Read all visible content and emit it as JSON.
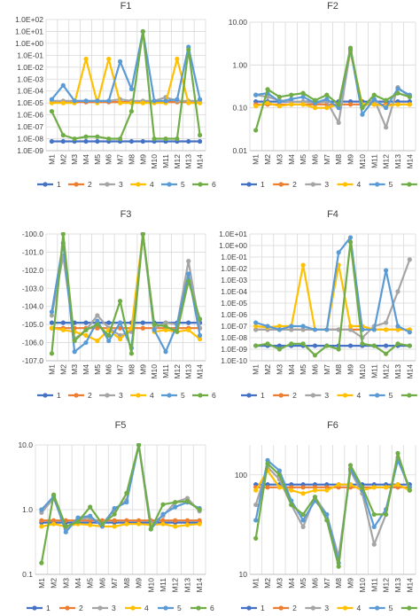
{
  "colors": {
    "1": "#4472C4",
    "2": "#ED7D31",
    "3": "#A5A5A5",
    "4": "#FFC000",
    "5": "#5B9BD5",
    "6": "#70AD47"
  },
  "chart_data": [
    {
      "type": "line",
      "title": "F1",
      "scale": "log",
      "categories": [
        "M1",
        "M2",
        "M3",
        "M4",
        "M5",
        "M6",
        "M7",
        "M8",
        "M9",
        "M10",
        "M11",
        "M12",
        "M13",
        "M14"
      ],
      "ylim": [
        1e-09,
        100
      ],
      "ytick_labels": [
        "1.0E-09",
        "1.0E-08",
        "1.0E-07",
        "1.0E-06",
        "1.0E-05",
        "1.0E-04",
        "1.0E-03",
        "1.0E-02",
        "1.0E-01",
        "1.0E+00",
        "1.0E+01",
        "1.0E+02"
      ],
      "legend": "bottom",
      "series": [
        {
          "name": "1",
          "values": [
            6e-09,
            6e-09,
            6e-09,
            6e-09,
            6e-09,
            6e-09,
            6e-09,
            6e-09,
            6e-09,
            6e-09,
            6e-09,
            6e-09,
            6e-09,
            6e-09
          ]
        },
        {
          "name": "2",
          "values": [
            1.2e-05,
            1.2e-05,
            1.2e-05,
            1.2e-05,
            1.2e-05,
            1.2e-05,
            1.2e-05,
            1.2e-05,
            1.2e-05,
            1.2e-05,
            1.2e-05,
            1.2e-05,
            1.2e-05,
            1.2e-05
          ]
        },
        {
          "name": "3",
          "values": [
            1.5e-05,
            1.5e-05,
            1.5e-05,
            1.5e-05,
            1.5e-05,
            1.5e-05,
            2e-05,
            1.5e-05,
            1.5e-05,
            1.5e-05,
            3e-05,
            1.5e-05,
            1.5e-05,
            1.5e-05
          ]
        },
        {
          "name": "4",
          "values": [
            1e-05,
            1e-05,
            1e-05,
            0.05,
            1e-05,
            0.05,
            1e-05,
            1e-05,
            1e-05,
            1e-05,
            1e-05,
            0.05,
            1e-05,
            1e-05
          ]
        },
        {
          "name": "5",
          "values": [
            2e-05,
            0.0003,
            1.5e-05,
            1.5e-05,
            1.5e-05,
            1.5e-05,
            0.03,
            0.00015,
            10,
            1.5e-05,
            1.5e-05,
            2e-05,
            0.5,
            2e-05
          ]
        },
        {
          "name": "6",
          "values": [
            2e-06,
            2e-08,
            1e-08,
            1.5e-08,
            1.5e-08,
            1e-08,
            1e-08,
            2e-06,
            10,
            1e-08,
            1e-08,
            1e-08,
            0.3,
            2e-08
          ]
        }
      ]
    },
    {
      "type": "line",
      "title": "F2",
      "scale": "log",
      "categories": [
        "M1",
        "M2",
        "M3",
        "M4",
        "M5",
        "M6",
        "M7",
        "M8",
        "M9",
        "M10",
        "M11",
        "M12",
        "M13",
        "M14"
      ],
      "ylim": [
        0.01,
        10
      ],
      "ytick_labels": [
        "0.01",
        "0.10",
        "1.00",
        "10.00"
      ],
      "legend": "bottom",
      "series": [
        {
          "name": "1",
          "values": [
            0.14,
            0.14,
            0.14,
            0.14,
            0.14,
            0.14,
            0.14,
            0.14,
            0.14,
            0.14,
            0.14,
            0.14,
            0.14,
            0.14
          ]
        },
        {
          "name": "2",
          "values": [
            0.12,
            0.12,
            0.12,
            0.12,
            0.12,
            0.12,
            0.12,
            0.12,
            0.12,
            0.12,
            0.12,
            0.12,
            0.12,
            0.12
          ]
        },
        {
          "name": "3",
          "values": [
            0.2,
            0.18,
            0.15,
            0.14,
            0.14,
            0.13,
            0.14,
            0.045,
            2.2,
            0.1,
            0.16,
            0.035,
            0.3,
            0.18
          ]
        },
        {
          "name": "4",
          "values": [
            0.11,
            0.13,
            0.11,
            0.12,
            0.12,
            0.1,
            0.1,
            0.12,
            2.0,
            0.12,
            0.12,
            0.11,
            0.12,
            0.12
          ]
        },
        {
          "name": "5",
          "values": [
            0.2,
            0.22,
            0.14,
            0.16,
            0.18,
            0.13,
            0.16,
            0.1,
            2.3,
            0.07,
            0.16,
            0.1,
            0.28,
            0.2
          ]
        },
        {
          "name": "6",
          "values": [
            0.03,
            0.27,
            0.18,
            0.2,
            0.22,
            0.15,
            0.2,
            0.12,
            2.5,
            0.1,
            0.2,
            0.15,
            0.22,
            0.18
          ]
        }
      ]
    },
    {
      "type": "line",
      "title": "F3",
      "scale": "linear",
      "categories": [
        "M1",
        "M2",
        "M3",
        "M4",
        "M5",
        "M6",
        "M7",
        "M8",
        "M9",
        "M10",
        "M11",
        "M12",
        "M13",
        "M14"
      ],
      "ylim": [
        -107,
        -100
      ],
      "ytick_labels": [
        "-107.0",
        "-106.0",
        "-105.0",
        "-104.0",
        "-103.0",
        "-102.0",
        "-101.0",
        "-100.0"
      ],
      "legend": "bottom",
      "series": [
        {
          "name": "1",
          "values": [
            -104.9,
            -104.9,
            -104.9,
            -104.9,
            -104.9,
            -104.9,
            -104.9,
            -104.9,
            -104.9,
            -104.9,
            -104.9,
            -104.9,
            -104.9,
            -104.9
          ]
        },
        {
          "name": "2",
          "values": [
            -105.2,
            -105.2,
            -105.2,
            -105.2,
            -105.2,
            -105.2,
            -105.2,
            -105.2,
            -105.2,
            -105.2,
            -105.2,
            -105.2,
            -105.2,
            -105.2
          ]
        },
        {
          "name": "3",
          "values": [
            -104.5,
            -101.2,
            -105.8,
            -105.3,
            -104.5,
            -105.2,
            -105.6,
            -105.4,
            -100,
            -105.2,
            -104.9,
            -105.0,
            -101.5,
            -105.2
          ]
        },
        {
          "name": "4",
          "values": [
            -105.2,
            -105.3,
            -105.4,
            -105.6,
            -105.9,
            -105.3,
            -105.8,
            -105.2,
            -100,
            -105.4,
            -105.3,
            -105.4,
            -105.3,
            -105.8
          ]
        },
        {
          "name": "5",
          "values": [
            -104.3,
            -100.5,
            -106.5,
            -106.0,
            -104.8,
            -105.9,
            -104.9,
            -106.3,
            -100,
            -105.3,
            -106.5,
            -105.0,
            -102.2,
            -105.6
          ]
        },
        {
          "name": "6",
          "values": [
            -106.6,
            -100,
            -105.9,
            -105.3,
            -105.0,
            -105.6,
            -103.7,
            -106.6,
            -100,
            -105.0,
            -105.1,
            -105.4,
            -102.6,
            -104.7
          ]
        }
      ]
    },
    {
      "type": "line",
      "title": "F4",
      "scale": "log",
      "categories": [
        "M1",
        "M2",
        "M3",
        "M4",
        "M5",
        "M6",
        "M7",
        "M8",
        "M9",
        "M10",
        "M11",
        "M12",
        "M13",
        "M14"
      ],
      "ylim": [
        1e-10,
        10
      ],
      "ytick_labels": [
        "1.0E-10",
        "1.0E-09",
        "1.0E-08",
        "1.0E-07",
        "1.0E-06",
        "1.0E-05",
        "1.0E-04",
        "1.0E-03",
        "1.0E-02",
        "1.0E-01",
        "1.0E+00",
        "1.0E+01"
      ],
      "legend": "bottom",
      "series": [
        {
          "name": "1",
          "values": [
            2e-09,
            2e-09,
            2e-09,
            2e-09,
            2e-09,
            2e-09,
            2e-09,
            2e-09,
            2e-09,
            2e-09,
            2e-09,
            2e-09,
            2e-09,
            2e-09
          ]
        },
        {
          "name": "2",
          "values": [
            5e-08,
            5e-08,
            5e-08,
            5e-08,
            5e-08,
            5e-08,
            5e-08,
            5e-08,
            5e-08,
            5e-08,
            5e-08,
            5e-08,
            5e-08,
            5e-08
          ]
        },
        {
          "name": "3",
          "values": [
            5e-08,
            5e-08,
            5e-08,
            5e-08,
            5e-08,
            5e-08,
            5e-08,
            5e-08,
            5e-08,
            1e-08,
            1e-07,
            2e-07,
            0.0001,
            0.06
          ]
        },
        {
          "name": "4",
          "values": [
            1e-07,
            8e-08,
            1e-07,
            1e-07,
            0.02,
            5e-08,
            5e-08,
            0.02,
            1e-07,
            1e-07,
            5e-08,
            5e-08,
            5e-08,
            5e-08
          ]
        },
        {
          "name": "5",
          "values": [
            2e-07,
            1e-07,
            5e-08,
            1e-07,
            1e-07,
            5e-08,
            5e-08,
            0.25,
            5,
            5e-08,
            5e-08,
            0.007,
            1e-07,
            3e-08
          ]
        },
        {
          "name": "6",
          "values": [
            2e-09,
            3e-09,
            1e-09,
            3e-09,
            3e-09,
            3e-10,
            2e-09,
            1e-09,
            2,
            3e-09,
            2e-09,
            4e-10,
            3e-09,
            2e-09
          ]
        }
      ]
    },
    {
      "type": "line",
      "title": "F5",
      "scale": "log",
      "categories": [
        "M1",
        "M2",
        "M3",
        "M4",
        "M5",
        "M6",
        "M7",
        "M8",
        "M9",
        "M10",
        "M11",
        "M12",
        "M13",
        "M14"
      ],
      "ylim": [
        0.1,
        10
      ],
      "ytick_labels": [
        "0.1",
        "1.0",
        "10.0"
      ],
      "legend": "bottom",
      "series": [
        {
          "name": "1",
          "values": [
            0.63,
            0.63,
            0.63,
            0.63,
            0.63,
            0.63,
            0.63,
            0.63,
            0.63,
            0.63,
            0.63,
            0.63,
            0.63,
            0.63
          ]
        },
        {
          "name": "2",
          "values": [
            0.68,
            0.68,
            0.68,
            0.68,
            0.68,
            0.68,
            0.68,
            0.68,
            0.68,
            0.68,
            0.68,
            0.68,
            0.68,
            0.68
          ]
        },
        {
          "name": "3",
          "values": [
            0.9,
            1.5,
            0.5,
            0.7,
            0.75,
            0.6,
            1.0,
            1.4,
            10,
            0.6,
            0.8,
            1.3,
            1.5,
            0.95
          ]
        },
        {
          "name": "4",
          "values": [
            0.55,
            0.6,
            0.55,
            0.6,
            0.58,
            0.55,
            0.55,
            0.6,
            0.6,
            0.58,
            0.6,
            0.55,
            0.58,
            0.6
          ]
        },
        {
          "name": "5",
          "values": [
            1.0,
            1.6,
            0.45,
            0.75,
            0.8,
            0.55,
            1.05,
            1.3,
            10,
            0.5,
            0.85,
            1.1,
            1.3,
            1.05
          ]
        },
        {
          "name": "6",
          "values": [
            0.15,
            1.7,
            0.55,
            0.65,
            1.1,
            0.6,
            0.85,
            1.8,
            10,
            0.5,
            1.2,
            1.3,
            1.35,
            1.0
          ]
        }
      ]
    },
    {
      "type": "line",
      "title": "F6",
      "scale": "log",
      "categories": [
        "M1",
        "M2",
        "M3",
        "M4",
        "M5",
        "M6",
        "M7",
        "M8",
        "M9",
        "M10",
        "M11",
        "M12",
        "M13",
        "M14"
      ],
      "ylim": [
        10,
        200
      ],
      "ytick_labels": [
        "10",
        "100"
      ],
      "legend": "bottom",
      "series": [
        {
          "name": "1",
          "values": [
            80,
            80,
            80,
            80,
            80,
            80,
            80,
            80,
            80,
            80,
            80,
            80,
            80,
            80
          ]
        },
        {
          "name": "2",
          "values": [
            75,
            75,
            75,
            75,
            75,
            75,
            75,
            75,
            75,
            75,
            75,
            75,
            75,
            75
          ]
        },
        {
          "name": "3",
          "values": [
            50,
            120,
            90,
            50,
            30,
            60,
            40,
            15,
            110,
            65,
            20,
            40,
            150,
            70
          ]
        },
        {
          "name": "4",
          "values": [
            70,
            110,
            75,
            70,
            65,
            70,
            70,
            80,
            80,
            70,
            75,
            75,
            80,
            70
          ]
        },
        {
          "name": "5",
          "values": [
            35,
            140,
            110,
            55,
            35,
            55,
            40,
            13,
            115,
            70,
            30,
            45,
            140,
            75
          ]
        },
        {
          "name": "6",
          "values": [
            23,
            130,
            100,
            50,
            40,
            60,
            35,
            12,
            125,
            75,
            40,
            40,
            165,
            70
          ]
        }
      ]
    }
  ]
}
